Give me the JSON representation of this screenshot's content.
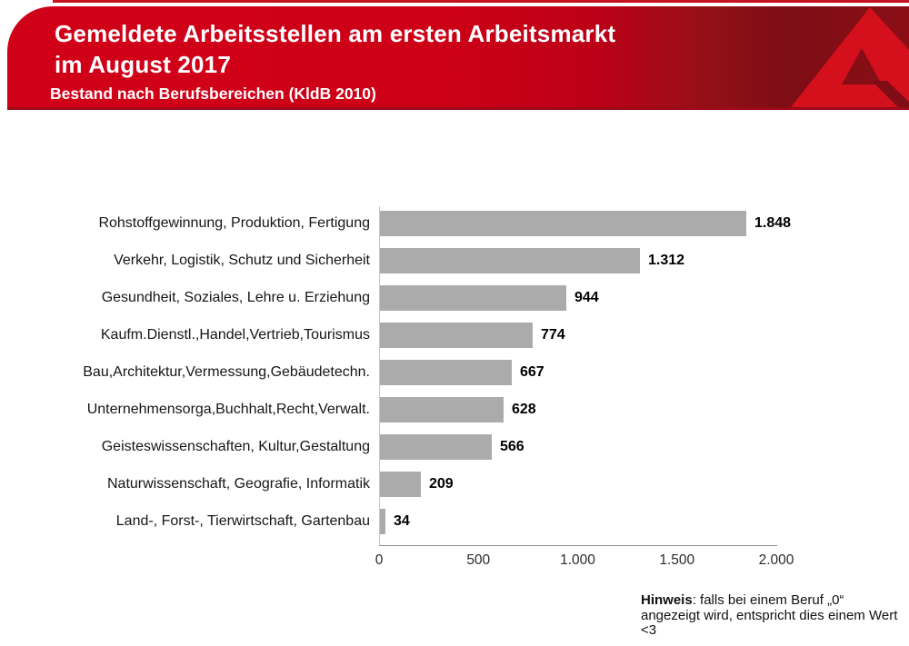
{
  "header": {
    "title_line1": "Gemeldete Arbeitsstellen am ersten Arbeitsmarkt",
    "title_line2": "im August 2017",
    "subtitle": "Bestand nach Berufsbereichen (KldB 2010)",
    "logo": "bundesagentur-fuer-arbeit-a-logo",
    "colors": {
      "banner_red": "#d10019",
      "banner_dark_red": "#7d0d15",
      "banner_border": "#9c0a18",
      "logo_red": "#d3101c",
      "text": "#ffffff"
    }
  },
  "chart_data": {
    "type": "bar",
    "orientation": "horizontal",
    "categories": [
      "Rohstoffgewinnung, Produktion, Fertigung",
      "Verkehr, Logistik, Schutz und Sicherheit",
      "Gesundheit, Soziales, Lehre u. Erziehung",
      "Kaufm.Dienstl.,Handel,Vertrieb,Tourismus",
      "Bau,Architektur,Vermessung,Gebäudetechn.",
      "Unternehmensorga,Buchhalt,Recht,Verwalt.",
      "Geisteswissenschaften, Kultur,Gestaltung",
      "Naturwissenschaft, Geografie, Informatik",
      "Land-, Forst-, Tierwirtschaft, Gartenbau"
    ],
    "values": [
      1848,
      1312,
      944,
      774,
      667,
      628,
      566,
      209,
      34
    ],
    "value_labels": [
      "1.848",
      "1.312",
      "944",
      "774",
      "667",
      "628",
      "566",
      "209",
      "34"
    ],
    "x_ticks": [
      {
        "v": 0,
        "label": "0"
      },
      {
        "v": 500,
        "label": "500"
      },
      {
        "v": 1000,
        "label": "1.000"
      },
      {
        "v": 1500,
        "label": "1.500"
      },
      {
        "v": 2000,
        "label": "2.000"
      }
    ],
    "xlim": [
      0,
      2000
    ],
    "xlabel": "",
    "ylabel": "",
    "title": "",
    "grid": false,
    "legend": "none",
    "bar_color": "#ababab"
  },
  "note": {
    "label": "Hinweis",
    "text": ": falls bei einem Beruf „0“ angezeigt wird, entspricht dies einem Wert <3"
  }
}
